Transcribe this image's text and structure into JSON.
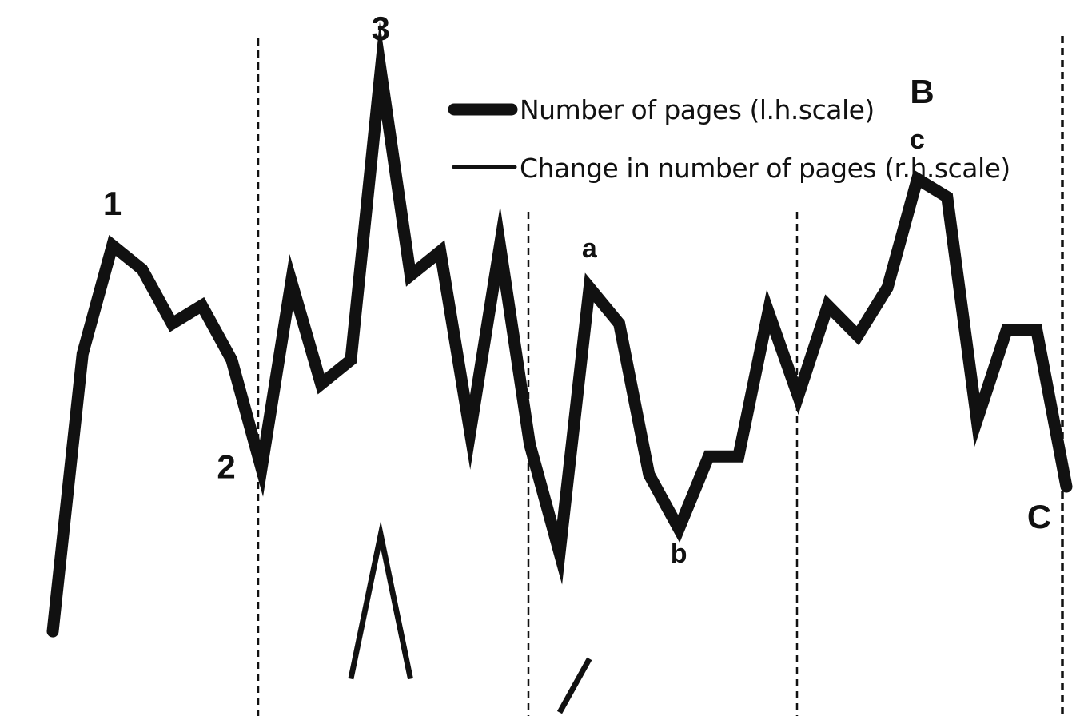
{
  "chart_data": {
    "type": "line",
    "title": "",
    "xlabel": "",
    "ylabel": "",
    "grid": false,
    "legend_position": "top-right",
    "vertical_separators": 4,
    "series": [
      {
        "name": "Number of pages (l.h.scale)",
        "scale": "left",
        "line_weight": "thick",
        "values": [
          7,
          53,
          71,
          67,
          58,
          61,
          52,
          34,
          65,
          48,
          52,
          100,
          66,
          70,
          40,
          71,
          38,
          20,
          64,
          58,
          33,
          24,
          36,
          36,
          60,
          46,
          61,
          56,
          64,
          82,
          79,
          42,
          57,
          57,
          31
        ]
      },
      {
        "name": "Change in number of pages (r.h.scale)",
        "scale": "right",
        "line_weight": "thin",
        "values": [
          null,
          null,
          null,
          null,
          null,
          null,
          null,
          null,
          null,
          null,
          12,
          55,
          12,
          null,
          null,
          null,
          null,
          2,
          18,
          null,
          null,
          null,
          null,
          null,
          null,
          null,
          null,
          null,
          null,
          null,
          null,
          null,
          null,
          null,
          null
        ]
      }
    ],
    "annotations": [
      {
        "text": "1",
        "series": 0,
        "index": 2,
        "placement": "above"
      },
      {
        "text": "2",
        "series": 0,
        "index": 7,
        "placement": "left"
      },
      {
        "text": "3",
        "series": 0,
        "index": 11,
        "placement": "above"
      },
      {
        "text": "a",
        "series": 0,
        "index": 18,
        "placement": "above"
      },
      {
        "text": "b",
        "series": 0,
        "index": 21,
        "placement": "below"
      },
      {
        "text": "c",
        "series": 0,
        "index": 29,
        "placement": "above"
      },
      {
        "text": "B",
        "series": 0,
        "index": 29,
        "placement": "above-far"
      },
      {
        "text": "C",
        "series": 0,
        "index": 34,
        "placement": "below-left"
      }
    ],
    "colors": {
      "line": "#111111",
      "background": "#ffffff"
    }
  }
}
